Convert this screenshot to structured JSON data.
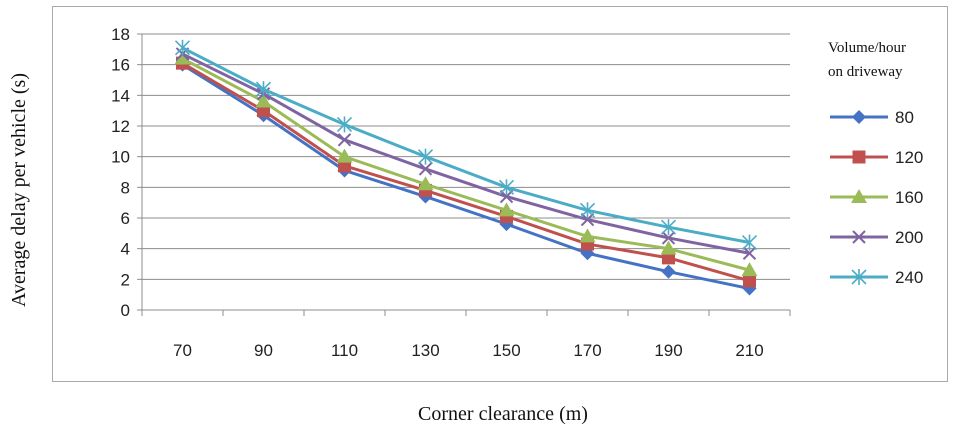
{
  "chart_data": {
    "type": "line",
    "xlabel": "Corner clearance (m)",
    "ylabel": "Average delay per vehicle (s)",
    "x": [
      70,
      90,
      110,
      130,
      150,
      170,
      190,
      210
    ],
    "ylim": [
      0,
      18
    ],
    "yticks": [
      0,
      2,
      4,
      6,
      8,
      10,
      12,
      14,
      16,
      18
    ],
    "grid": true,
    "legend": {
      "title_lines": [
        "Volume/hour",
        "on driveway"
      ],
      "placement": "right"
    },
    "series": [
      {
        "name": "80",
        "color": "#4472c4",
        "marker": "diamond",
        "values": [
          16.0,
          12.7,
          9.1,
          7.4,
          5.6,
          3.7,
          2.5,
          1.4
        ]
      },
      {
        "name": "120",
        "color": "#c0504d",
        "marker": "square",
        "values": [
          16.1,
          13.0,
          9.4,
          7.8,
          6.1,
          4.3,
          3.4,
          1.9
        ]
      },
      {
        "name": "160",
        "color": "#9bbb59",
        "marker": "triangle",
        "values": [
          16.4,
          13.6,
          10.0,
          8.2,
          6.5,
          4.8,
          4.0,
          2.6
        ]
      },
      {
        "name": "200",
        "color": "#8064a2",
        "marker": "x",
        "values": [
          16.7,
          14.1,
          11.1,
          9.2,
          7.4,
          5.9,
          4.7,
          3.7
        ]
      },
      {
        "name": "240",
        "color": "#4bacc6",
        "marker": "star",
        "values": [
          17.1,
          14.4,
          12.1,
          10.0,
          8.0,
          6.5,
          5.4,
          4.4
        ]
      }
    ]
  }
}
